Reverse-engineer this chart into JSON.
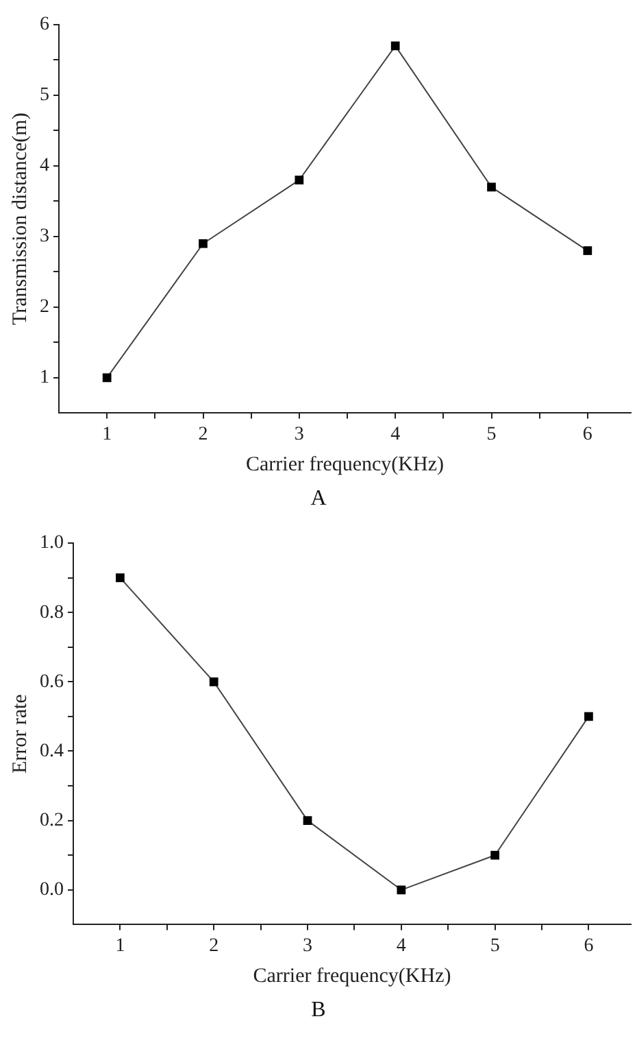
{
  "chart_data": [
    {
      "type": "line",
      "x": [
        1,
        2,
        3,
        4,
        5,
        6
      ],
      "xlabel": "Carrier frequency(KHz)",
      "ylabel": "Transmission distance(m)",
      "annotations": [
        "A"
      ],
      "series": [
        {
          "color": "#000000",
          "values": [
            1.0,
            2.9,
            3.8,
            5.7,
            3.7,
            2.8
          ]
        }
      ],
      "xlim": [
        0.5,
        6.45
      ],
      "xticks": [
        1,
        {
          "value": 1.5,
          "label": null
        },
        2,
        {
          "value": 2.5,
          "label": null
        },
        3,
        {
          "value": 3.5,
          "label": null
        },
        4,
        {
          "value": 4.5,
          "label": null
        },
        5,
        {
          "value": 5.5,
          "label": null
        },
        6
      ],
      "ylim": [
        0.5,
        6
      ],
      "yticks": [
        1,
        {
          "value": 1.5,
          "label": null
        },
        2,
        {
          "value": 2.5,
          "label": null
        },
        3,
        {
          "value": 3.5,
          "label": null
        },
        4,
        {
          "value": 4.5,
          "label": null
        },
        5,
        {
          "value": 5.5,
          "label": null
        },
        6
      ],
      "grid": false,
      "legend": false,
      "marker": "square",
      "line_style": "solid"
    },
    {
      "type": "line",
      "x": [
        1,
        2,
        3,
        4,
        5,
        6
      ],
      "xlabel": "Carrier frequency(KHz)",
      "ylabel": "Error rate",
      "annotations": [
        "B"
      ],
      "series": [
        {
          "color": "#000000",
          "values": [
            0.9,
            0.6,
            0.2,
            0.0,
            0.1,
            0.5
          ]
        }
      ],
      "xlim": [
        0.5,
        6.45
      ],
      "xticks": [
        1,
        {
          "value": 1.5,
          "label": null
        },
        2,
        {
          "value": 2.5,
          "label": null
        },
        3,
        {
          "value": 3.5,
          "label": null
        },
        4,
        {
          "value": 4.5,
          "label": null
        },
        5,
        {
          "value": 5.5,
          "label": null
        },
        6
      ],
      "ylim": [
        -0.1,
        1.0
      ],
      "yticks": [
        {
          "value": 0.0,
          "label": "0.0"
        },
        {
          "value": 0.1,
          "label": null
        },
        {
          "value": 0.2,
          "label": "0.2"
        },
        {
          "value": 0.3,
          "label": null
        },
        {
          "value": 0.4,
          "label": "0.4"
        },
        {
          "value": 0.5,
          "label": null
        },
        {
          "value": 0.6,
          "label": "0.6"
        },
        {
          "value": 0.7,
          "label": null
        },
        {
          "value": 0.8,
          "label": "0.8"
        },
        {
          "value": 0.9,
          "label": null
        },
        {
          "value": 1.0,
          "label": "1.0"
        }
      ],
      "grid": false,
      "legend": false,
      "marker": "square",
      "line_style": "solid"
    }
  ]
}
